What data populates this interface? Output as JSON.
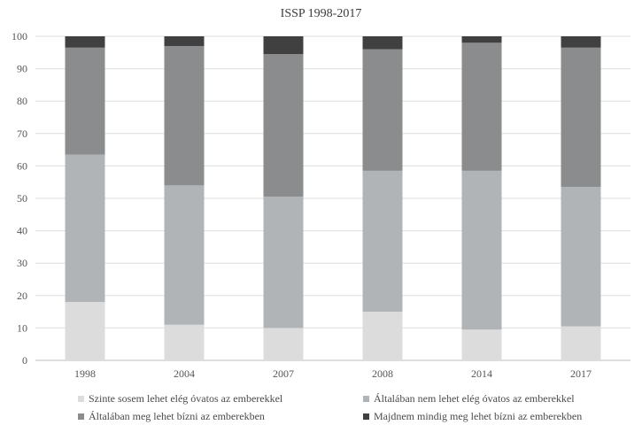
{
  "chart_data": {
    "type": "bar",
    "stacked": true,
    "title": "ISSP 1998-2017",
    "categories": [
      "1998",
      "2004",
      "2007",
      "2008",
      "2014",
      "2017"
    ],
    "ylim": [
      0,
      100
    ],
    "yticks": [
      0,
      10,
      20,
      30,
      40,
      50,
      60,
      70,
      80,
      90,
      100
    ],
    "grid": true,
    "legend_position": "bottom",
    "series": [
      {
        "name": "Szinte sosem lehet elég óvatos az emberekkel",
        "color": "#dcdcdc",
        "values": [
          18,
          11,
          10,
          15,
          9.5,
          10.5
        ]
      },
      {
        "name": "Általában nem lehet elég óvatos az emberekkel",
        "color": "#b0b4b7",
        "values": [
          45.5,
          43,
          40.5,
          43.5,
          49,
          43
        ]
      },
      {
        "name": "Általában meg lehet bízni az emberekben",
        "color": "#8a8c8e",
        "values": [
          33,
          43,
          44,
          37.5,
          39.5,
          43
        ]
      },
      {
        "name": "Majdnem mindig meg lehet bízni az emberekben",
        "color": "#404040",
        "values": [
          3.5,
          3,
          5.5,
          4,
          2,
          3.5
        ]
      }
    ]
  }
}
